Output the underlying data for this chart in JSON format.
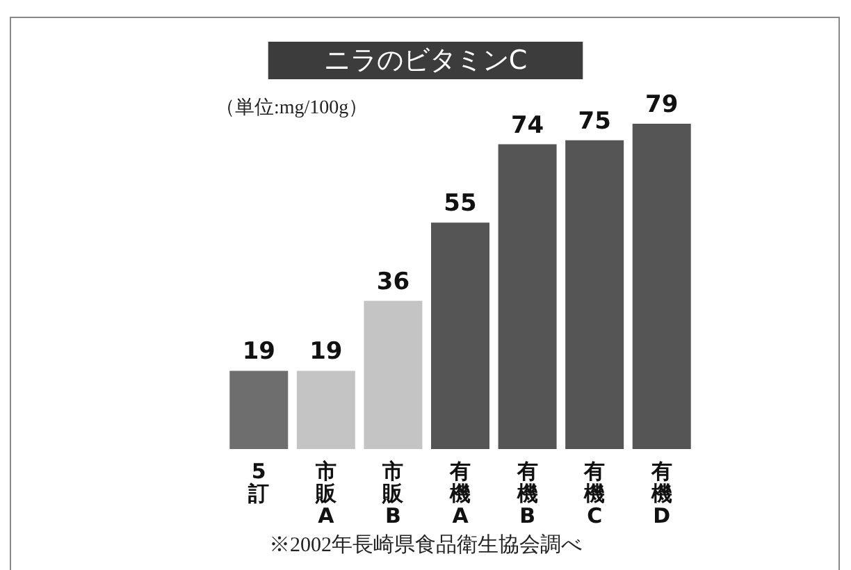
{
  "chart_data": {
    "type": "bar",
    "title": "ニラのビタミンC",
    "subtitle": "（単位:mg/100g）",
    "categories": [
      "5訂",
      "市販A",
      "市販B",
      "有機A",
      "有機B",
      "有機C",
      "有機D"
    ],
    "values": [
      19,
      19,
      36,
      55,
      74,
      75,
      79
    ],
    "colors": [
      "#6e6e6e",
      "#c4c4c4",
      "#c4c4c4",
      "#555555",
      "#555555",
      "#555555",
      "#555555"
    ],
    "data_labels": true,
    "annotations": [
      "※2002年長崎県食品衛生協会調べ"
    ]
  }
}
